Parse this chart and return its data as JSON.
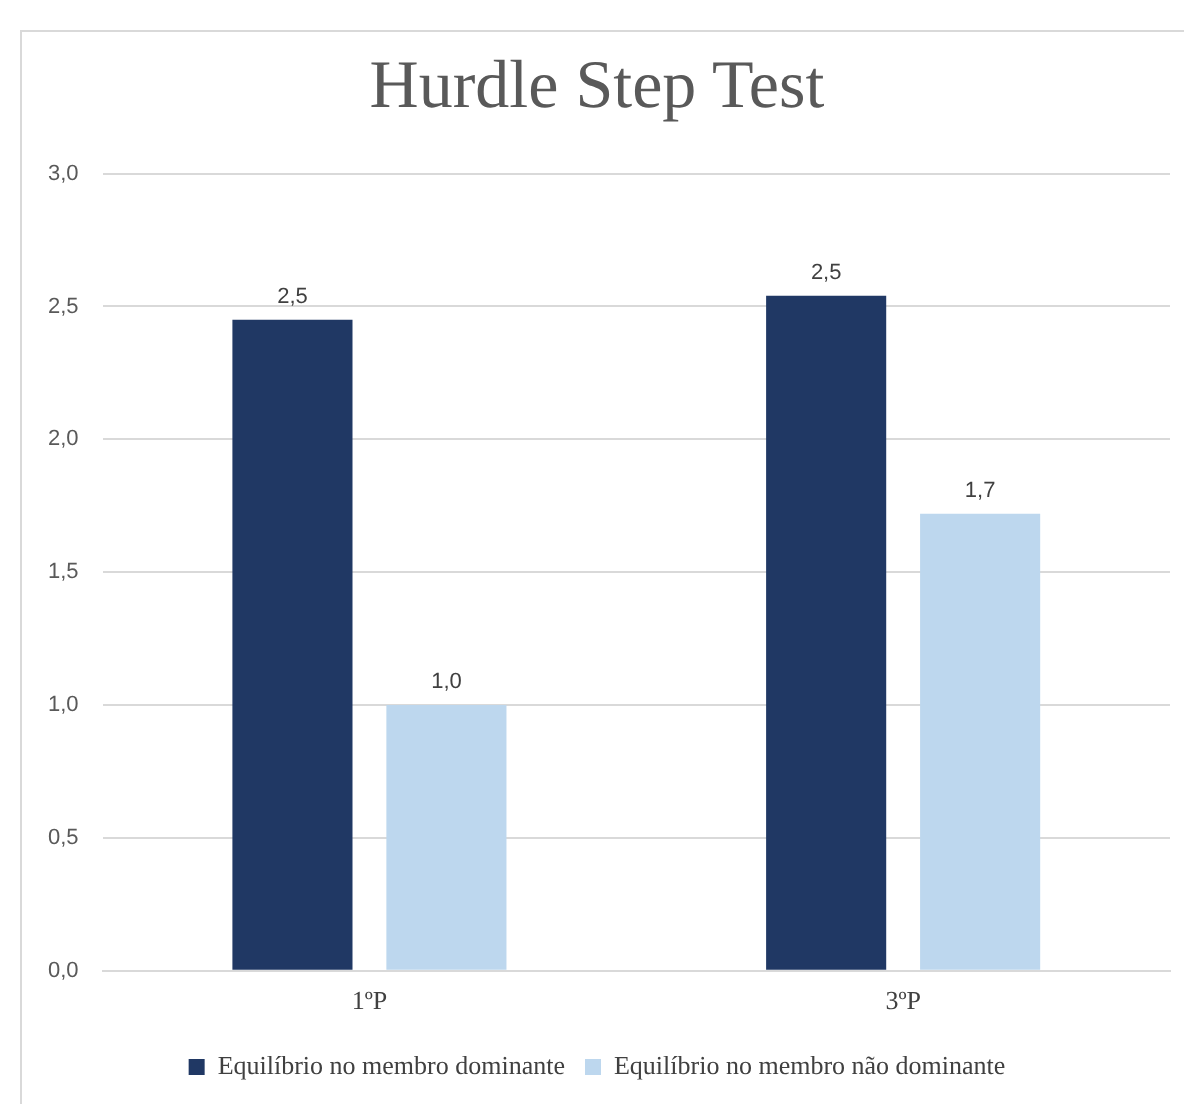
{
  "chart_data": {
    "type": "bar",
    "title": "Hurdle Step Test",
    "categories": [
      "1ºP",
      "3ºP"
    ],
    "series": [
      {
        "name": "Equilíbrio no membro dominante",
        "color": "#203864",
        "values": [
          2.45,
          2.54
        ],
        "value_labels": [
          "2,5",
          "2,5"
        ]
      },
      {
        "name": "Equilíbrio no membro não dominante",
        "color": "#bdd7ee",
        "values": [
          1.0,
          1.72
        ],
        "value_labels": [
          "1,0",
          "1,7"
        ]
      }
    ],
    "ylim": [
      0,
      3
    ],
    "yticks": [
      {
        "value": 0,
        "label": "0,0"
      },
      {
        "value": 0.5,
        "label": "0,5"
      },
      {
        "value": 1,
        "label": "1,0"
      },
      {
        "value": 1.5,
        "label": "1,5"
      },
      {
        "value": 2,
        "label": "2,0"
      },
      {
        "value": 2.5,
        "label": "2,5"
      },
      {
        "value": 3,
        "label": "3,0"
      }
    ],
    "grid": "y",
    "legend": "bottom"
  }
}
